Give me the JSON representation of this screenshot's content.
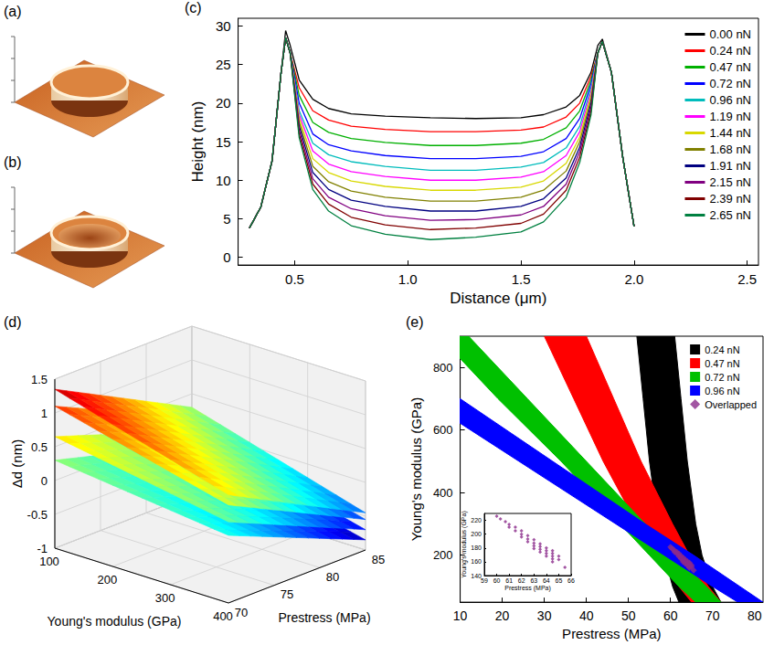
{
  "images": [
    {
      "title": "(a)"
    },
    {
      "title": "(b)"
    }
  ],
  "chart_data": [
    {
      "type": "line",
      "title": "(c)",
      "x_label": "Distance (μm)",
      "y_label": "Height (nm)",
      "x": [
        0.3,
        0.35,
        0.4,
        0.44,
        0.46,
        0.48,
        0.52,
        0.58,
        0.65,
        0.75,
        0.9,
        1.1,
        1.3,
        1.5,
        1.6,
        1.7,
        1.76,
        1.81,
        1.84,
        1.86,
        1.9,
        1.95,
        2.0
      ],
      "xlim": [
        0.25,
        2.55
      ],
      "xticks": [
        0.5,
        {
          "value": 1,
          "label": "1.0"
        },
        1.5,
        {
          "value": 2,
          "label": "2.0"
        },
        2.5
      ],
      "ylim": [
        -1,
        31
      ],
      "yticks": [
        0,
        5,
        10,
        15,
        20,
        25,
        30
      ],
      "legend": "upper right",
      "series": [
        {
          "name": "0.00 nN",
          "color": "#000000",
          "values": [
            3.8,
            6.5,
            12.5,
            24,
            29.4,
            27.5,
            23,
            20.5,
            19.3,
            18.6,
            18.3,
            18.1,
            18.0,
            18.1,
            18.5,
            19.5,
            21,
            24,
            27.5,
            28.3,
            24,
            13,
            4
          ]
        },
        {
          "name": "0.24 nN",
          "color": "#ff0000",
          "values": [
            3.8,
            6.5,
            12.5,
            24,
            28.5,
            26.5,
            22,
            19,
            17.8,
            17.0,
            16.6,
            16.3,
            16.3,
            16.5,
            16.9,
            18.2,
            20,
            23.5,
            26.5,
            28,
            24,
            13,
            4
          ]
        },
        {
          "name": "0.47 nN",
          "color": "#00b000",
          "values": [
            3.8,
            6.5,
            12.5,
            24,
            28.5,
            26.5,
            21,
            17.5,
            16.2,
            15.4,
            14.9,
            14.5,
            14.5,
            14.8,
            15.3,
            16.8,
            19,
            23,
            26.5,
            28,
            24,
            13,
            4
          ]
        },
        {
          "name": "0.72 nN",
          "color": "#0000ff",
          "values": [
            3.8,
            6.5,
            12.5,
            24,
            28.5,
            26.5,
            20,
            16,
            14.6,
            13.8,
            13.2,
            12.8,
            12.8,
            13.1,
            13.7,
            15.4,
            18,
            22.5,
            26.5,
            28,
            24,
            13,
            4
          ]
        },
        {
          "name": "0.96 nN",
          "color": "#00bcbc",
          "values": [
            3.8,
            6.5,
            12.5,
            24,
            28.5,
            26.5,
            19,
            14.8,
            13.3,
            12.4,
            11.8,
            11.3,
            11.3,
            11.7,
            12.3,
            14.2,
            17,
            22,
            26.5,
            28,
            24,
            13,
            4
          ]
        },
        {
          "name": "1.19 nN",
          "color": "#ff00ff",
          "values": [
            3.8,
            6.5,
            12.5,
            24,
            28.5,
            26.5,
            18.5,
            13.8,
            12.1,
            11.1,
            10.5,
            10.0,
            10.0,
            10.4,
            11.1,
            13.2,
            16.3,
            21.5,
            26.5,
            28,
            24,
            13,
            4
          ]
        },
        {
          "name": "1.44 nN",
          "color": "#d8d800",
          "values": [
            3.8,
            6.5,
            12.5,
            24,
            28.5,
            26.5,
            18,
            12.8,
            11,
            9.9,
            9.2,
            8.7,
            8.7,
            9.1,
            9.9,
            12.2,
            15.6,
            21,
            26.5,
            28,
            24,
            13,
            4
          ]
        },
        {
          "name": "1.68 nN",
          "color": "#808000",
          "values": [
            3.8,
            6.5,
            12.5,
            24,
            28.5,
            26.5,
            17.5,
            11.8,
            9.8,
            8.6,
            7.8,
            7.3,
            7.3,
            7.8,
            8.7,
            11.2,
            15,
            20.5,
            26.5,
            28,
            24,
            13,
            4
          ]
        },
        {
          "name": "1.91 nN",
          "color": "#000080",
          "values": [
            3.8,
            6.5,
            12.5,
            24,
            28.5,
            26.5,
            17,
            11,
            8.8,
            7.4,
            6.6,
            6.0,
            6.0,
            6.6,
            7.6,
            10.3,
            14.3,
            20,
            26.5,
            28,
            24,
            13,
            4
          ]
        },
        {
          "name": "2.15 nN",
          "color": "#800080",
          "values": [
            3.8,
            6.5,
            12.5,
            24,
            28.5,
            26.5,
            16.5,
            10.2,
            7.8,
            6.3,
            5.4,
            4.8,
            4.9,
            5.5,
            6.6,
            9.5,
            13.7,
            19.5,
            26.5,
            28,
            24,
            13,
            4
          ]
        },
        {
          "name": "2.39 nN",
          "color": "#800000",
          "values": [
            3.8,
            6.5,
            12.5,
            24,
            28.5,
            26.5,
            16,
            9.5,
            6.9,
            5.2,
            4.2,
            3.6,
            3.8,
            4.4,
            5.6,
            8.7,
            13,
            19,
            26.5,
            28,
            24,
            13,
            4
          ]
        },
        {
          "name": "2.65 nN",
          "color": "#008040",
          "values": [
            3.8,
            6.5,
            12.5,
            24,
            28.5,
            26.5,
            15.5,
            8.8,
            6.0,
            4.1,
            3.0,
            2.3,
            2.6,
            3.3,
            4.6,
            7.8,
            12.3,
            18.5,
            26.5,
            28,
            24,
            13,
            4
          ]
        }
      ]
    },
    {
      "type": "surface",
      "title": "(d)",
      "x_label": "Young's modulus (GPa)",
      "y_label": "Prestress (MPa)",
      "z_label": "Δd (nm)",
      "xlim": [
        100,
        400
      ],
      "xticks": [
        100,
        200,
        300,
        400
      ],
      "ylim": [
        70,
        85
      ],
      "yticks": [
        70,
        75,
        80,
        85
      ],
      "zlim": [
        -1,
        1.5
      ],
      "zticks": [
        -1,
        -0.5,
        0,
        0.5,
        1,
        1.5
      ],
      "grid": true,
      "x": [
        100,
        400
      ],
      "y": [
        70,
        85
      ],
      "surfaces": [
        {
          "z": [
            [
              0.3,
              0.0
            ],
            [
              -0.25,
              -0.85
            ]
          ]
        },
        {
          "z": [
            [
              0.65,
              0.2
            ],
            [
              -0.05,
              -0.7
            ]
          ]
        },
        {
          "z": [
            [
              1.1,
              0.45
            ],
            [
              0.15,
              -0.55
            ]
          ]
        },
        {
          "z": [
            [
              1.35,
              0.6
            ],
            [
              0.3,
              -0.45
            ]
          ]
        }
      ]
    },
    {
      "type": "band",
      "title": "(e)",
      "x_label": "Prestress (MPa)",
      "y_label": "Young's modulus (GPa)",
      "xlim": [
        10,
        82
      ],
      "xticks": [
        10,
        20,
        30,
        40,
        50,
        60,
        70,
        80
      ],
      "ylim": [
        50,
        900
      ],
      "yticks": [
        200,
        400,
        600,
        800
      ],
      "legend": "upper right",
      "series": [
        {
          "name": "0.24 nN",
          "color": "#000000",
          "marker": "square",
          "y": [
            900,
            700,
            500,
            300,
            200,
            100,
            50
          ],
          "x_low": [
            52,
            53.5,
            55,
            57,
            58.5,
            60.5,
            62
          ],
          "x_high": [
            61,
            62.5,
            64,
            66,
            67.5,
            70,
            72
          ]
        },
        {
          "name": "0.47 nN",
          "color": "#ff0000",
          "marker": "square",
          "y": [
            900,
            700,
            500,
            300,
            200,
            100,
            50
          ],
          "x_low": [
            30,
            37,
            44,
            52,
            57,
            62,
            65
          ],
          "x_high": [
            40,
            46.5,
            53,
            60.5,
            64.5,
            69,
            72
          ]
        },
        {
          "name": "0.72 nN",
          "color": "#00c000",
          "marker": "square",
          "y": [
            900,
            700,
            500,
            300,
            200,
            100,
            50
          ],
          "x_low": [
            5,
            19,
            34,
            48,
            55,
            62,
            66
          ],
          "x_high": [
            12,
            26,
            40,
            54,
            61,
            68.5,
            72
          ]
        },
        {
          "name": "0.96 nN",
          "color": "#0000ff",
          "marker": "square",
          "y": [
            700,
            500,
            300,
            200,
            100,
            50
          ],
          "x_low": [
            1,
            24,
            47,
            58.5,
            70,
            76
          ],
          "x_high": [
            10,
            32,
            54,
            65.5,
            76.5,
            82
          ]
        },
        {
          "name": "Overlapped",
          "type": "scatter",
          "color": "#8b2a8b",
          "marker": "diamond",
          "x": [
            60.0,
            60.3,
            60.7,
            61.0,
            61.0,
            61.5,
            61.5,
            62.0,
            62.0,
            62.0,
            62.5,
            62.5,
            62.5,
            63.0,
            63.0,
            63.0,
            63.0,
            63.5,
            63.5,
            63.5,
            63.5,
            64.0,
            64.0,
            64.0,
            64.0,
            64.5,
            64.5,
            64.5,
            64.5,
            64.5,
            65.0,
            65.0,
            65.5
          ],
          "values": [
            226,
            222,
            218,
            214,
            210,
            210,
            205,
            205,
            200,
            196,
            198,
            193,
            189,
            192,
            187,
            183,
            179,
            186,
            182,
            178,
            174,
            180,
            176,
            172,
            168,
            176,
            172,
            168,
            164,
            160,
            168,
            163,
            152
          ]
        }
      ],
      "inset": {
        "x_label": "Prestress (MPa)",
        "y_label": "Young's modulus (GPa)",
        "xlim": [
          59,
          66
        ],
        "xticks": [
          59,
          60,
          61,
          62,
          63,
          64,
          65,
          66
        ],
        "ylim": [
          140,
          230
        ],
        "yticks": [
          140,
          160,
          180,
          200,
          220
        ]
      }
    }
  ]
}
